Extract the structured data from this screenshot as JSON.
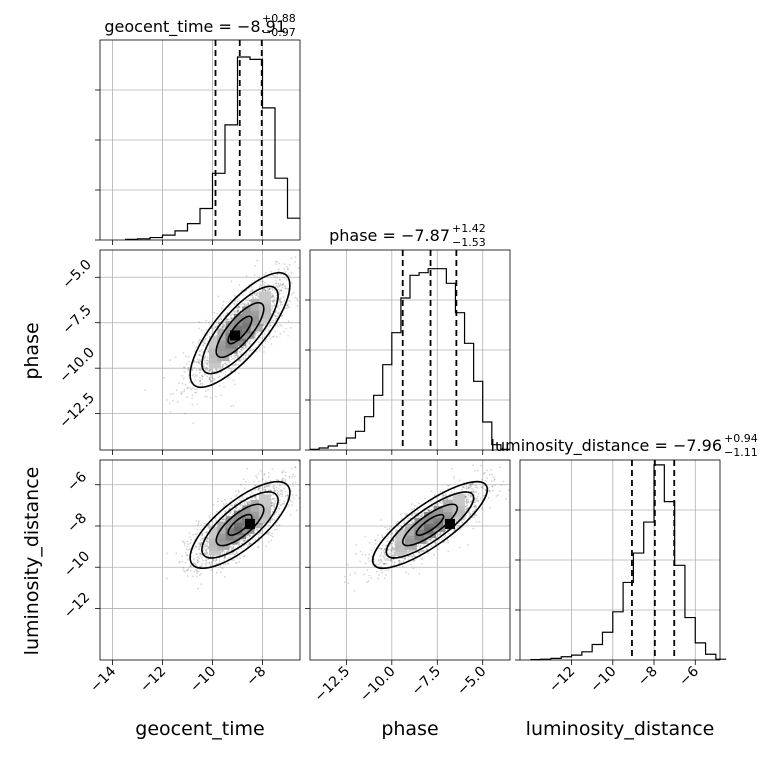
{
  "chart_data": {
    "type": "corner",
    "parameters": [
      "geocent_time",
      "phase",
      "luminosity_distance"
    ],
    "titles": [
      {
        "parameter": "geocent_time",
        "prefix": "geocent_time = ",
        "median": "−8.91",
        "upper": "+0.88",
        "lower": "−0.97"
      },
      {
        "parameter": "phase",
        "prefix": "phase = ",
        "median": "−7.87",
        "upper": "+1.42",
        "lower": "−1.53"
      },
      {
        "parameter": "luminosity_distance",
        "prefix": "luminosity_distance = ",
        "median": "−7.96",
        "upper": "+0.94",
        "lower": "−1.11"
      }
    ],
    "axis_labels": [
      "geocent_time",
      "phase",
      "luminosity_distance"
    ],
    "ranges": {
      "geocent_time": [
        -14.5,
        -6.5
      ],
      "phase": [
        -14.5,
        -3.5
      ],
      "luminosity_distance": [
        -14.5,
        -4.8
      ]
    },
    "ticks": {
      "geocent_time": {
        "values": [
          -14,
          -12,
          -10,
          -8
        ],
        "labels": [
          "−14",
          "−12",
          "−10",
          "−8"
        ]
      },
      "phase": {
        "values": [
          -12.5,
          -10.0,
          -7.5,
          -5.0
        ],
        "labels": [
          "−12.5",
          "−10.0",
          "−7.5",
          "−5.0"
        ]
      },
      "luminosity_distance_row": {
        "values": [
          -12,
          -10,
          -8,
          -6
        ],
        "labels": [
          "−12",
          "−10",
          "−8",
          "−6"
        ]
      },
      "luminosity_distance_col": {
        "values": [
          -12,
          -10,
          -8,
          -6
        ],
        "labels": [
          "−12",
          "−10",
          "−8",
          "−6"
        ]
      }
    },
    "histograms": [
      {
        "parameter": "geocent_time",
        "bin_edges": [
          -13.5,
          -13.0,
          -12.5,
          -12.0,
          -11.5,
          -11.0,
          -10.5,
          -10.0,
          -9.5,
          -9.0,
          -8.5,
          -8.0,
          -7.5,
          -7.0,
          -6.5
        ],
        "counts": [
          1,
          2,
          4,
          8,
          15,
          27,
          52,
          110,
          190,
          302,
          298,
          218,
          102,
          36
        ],
        "ymax": 330,
        "quantiles": [
          -9.88,
          -8.91,
          -8.03
        ]
      },
      {
        "parameter": "phase",
        "bin_edges": [
          -14.5,
          -14.0,
          -13.5,
          -13.0,
          -12.5,
          -12.0,
          -11.5,
          -11.0,
          -10.5,
          -10.0,
          -9.5,
          -9.0,
          -8.5,
          -8.0,
          -7.5,
          -7.0,
          -6.5,
          -6.0,
          -5.5,
          -5.0,
          -4.5,
          -4.0,
          -3.5
        ],
        "counts": [
          1,
          3,
          6,
          10,
          18,
          28,
          50,
          82,
          128,
          176,
          228,
          262,
          266,
          272,
          272,
          250,
          206,
          160,
          103,
          42,
          8,
          1
        ],
        "ymax": 300,
        "quantiles": [
          -9.4,
          -7.87,
          -6.45
        ]
      },
      {
        "parameter": "luminosity_distance",
        "bin_edges": [
          -14.0,
          -13.5,
          -13.0,
          -12.5,
          -12.0,
          -11.5,
          -11.0,
          -10.5,
          -10.0,
          -9.5,
          -9.0,
          -8.5,
          -8.0,
          -7.5,
          -7.0,
          -6.5,
          -6.0,
          -5.5,
          -5.0,
          -4.5
        ],
        "counts": [
          1,
          2,
          4,
          8,
          12,
          20,
          38,
          68,
          118,
          190,
          262,
          338,
          478,
          388,
          232,
          104,
          42,
          14,
          2
        ],
        "ymax": 490,
        "quantiles": [
          -9.07,
          -7.96,
          -7.02
        ]
      }
    ],
    "pairs": [
      {
        "x": "geocent_time",
        "y": "phase",
        "center": [
          -8.9,
          -7.9
        ],
        "sigma": [
          0.95,
          1.5
        ],
        "rho": 0.78,
        "peak": [
          -9.1,
          -8.2
        ]
      },
      {
        "x": "geocent_time",
        "y": "luminosity_distance",
        "center": [
          -8.9,
          -7.95
        ],
        "sigma": [
          0.95,
          1.0
        ],
        "rho": 0.75,
        "peak": [
          -8.5,
          -7.9
        ]
      },
      {
        "x": "phase",
        "y": "luminosity_distance",
        "center": [
          -7.9,
          -7.95
        ],
        "sigma": [
          1.5,
          1.0
        ],
        "rho": 0.82,
        "peak": [
          -6.8,
          -7.9
        ]
      }
    ],
    "contour_levels": [
      0.5,
      1.0,
      1.6,
      2.1
    ],
    "grid": true
  }
}
